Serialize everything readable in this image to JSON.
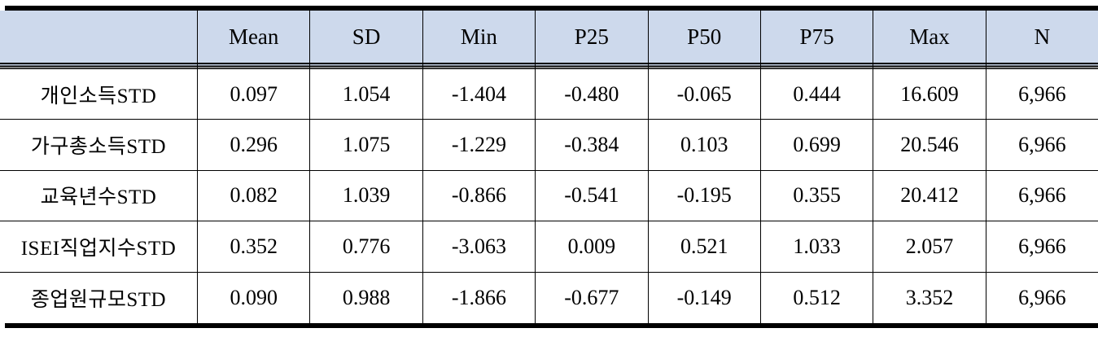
{
  "table": {
    "columns": [
      "",
      "Mean",
      "SD",
      "Min",
      "P25",
      "P50",
      "P75",
      "Max",
      "N"
    ],
    "rows": [
      {
        "label": "개인소득STD",
        "values": [
          "0.097",
          "1.054",
          "-1.404",
          "-0.480",
          "-0.065",
          "0.444",
          "16.609",
          "6,966"
        ]
      },
      {
        "label": "가구총소득STD",
        "values": [
          "0.296",
          "1.075",
          "-1.229",
          "-0.384",
          "0.103",
          "0.699",
          "20.546",
          "6,966"
        ]
      },
      {
        "label": "교육년수STD",
        "values": [
          "0.082",
          "1.039",
          "-0.866",
          "-0.541",
          "-0.195",
          "0.355",
          "20.412",
          "6,966"
        ]
      },
      {
        "label": "ISEI직업지수STD",
        "values": [
          "0.352",
          "0.776",
          "-3.063",
          "0.009",
          "0.521",
          "1.033",
          "2.057",
          "6,966"
        ]
      },
      {
        "label": "종업원규모STD",
        "values": [
          "0.090",
          "0.988",
          "-1.866",
          "-0.677",
          "-0.149",
          "0.512",
          "3.352",
          "6,966"
        ]
      }
    ],
    "colors": {
      "header_bg": "#cdd9ec",
      "rule": "#000000",
      "text": "#000000"
    }
  },
  "chart_data": {
    "type": "table",
    "columns": [
      "",
      "Mean",
      "SD",
      "Min",
      "P25",
      "P50",
      "P75",
      "Max",
      "N"
    ],
    "rows": [
      [
        "개인소득STD",
        0.097,
        1.054,
        -1.404,
        -0.48,
        -0.065,
        0.444,
        16.609,
        6966
      ],
      [
        "가구총소득STD",
        0.296,
        1.075,
        -1.229,
        -0.384,
        0.103,
        0.699,
        20.546,
        6966
      ],
      [
        "교육년수STD",
        0.082,
        1.039,
        -0.866,
        -0.541,
        -0.195,
        0.355,
        20.412,
        6966
      ],
      [
        "ISEI직업지수STD",
        0.352,
        0.776,
        -3.063,
        0.009,
        0.521,
        1.033,
        2.057,
        6966
      ],
      [
        "종업원규모STD",
        0.09,
        0.988,
        -1.866,
        -0.677,
        -0.149,
        0.512,
        3.352,
        6966
      ]
    ]
  }
}
